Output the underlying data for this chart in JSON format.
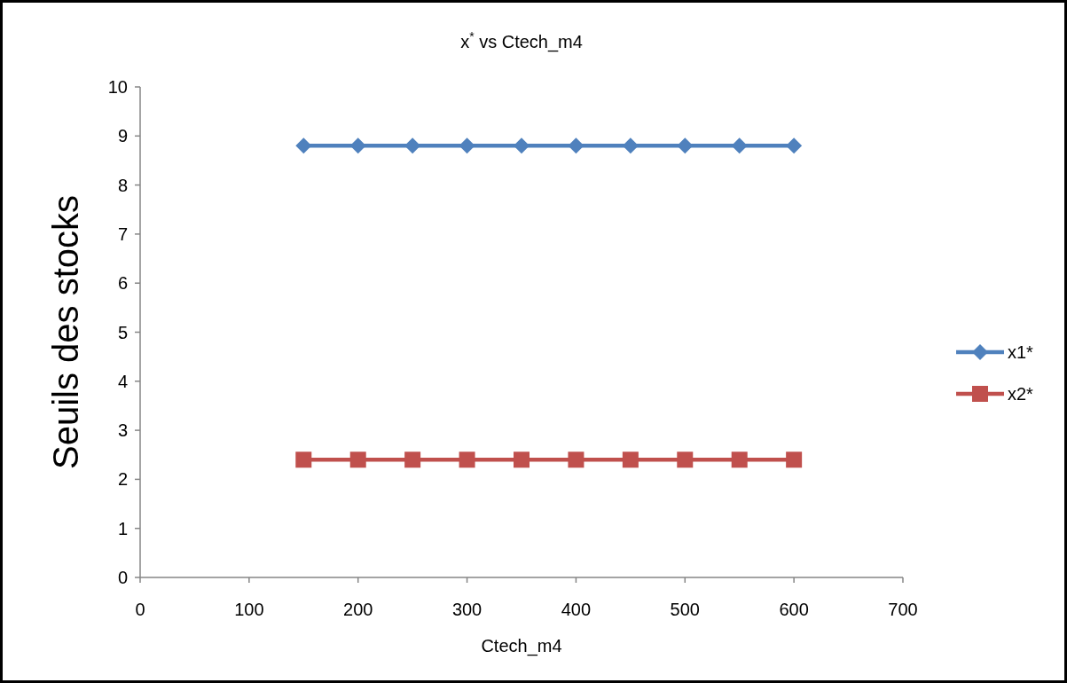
{
  "chart_data": {
    "type": "line",
    "title": "x$^{*}$ vs Ctech_m4",
    "xlabel": "Ctech_m4",
    "ylabel": "Seuils des stocks",
    "x": [
      150,
      200,
      250,
      300,
      350,
      400,
      450,
      500,
      550,
      600
    ],
    "series": [
      {
        "name": "x1*",
        "color": "#4f81bd",
        "marker": "diamond",
        "values": [
          8.8,
          8.8,
          8.8,
          8.8,
          8.8,
          8.8,
          8.8,
          8.8,
          8.8,
          8.8
        ]
      },
      {
        "name": "x2*",
        "color": "#c0504d",
        "marker": "square",
        "values": [
          2.4,
          2.4,
          2.4,
          2.4,
          2.4,
          2.4,
          2.4,
          2.4,
          2.4,
          2.4
        ]
      }
    ],
    "xlim": [
      0,
      700
    ],
    "xticks": [
      0,
      100,
      200,
      300,
      400,
      500,
      600,
      700
    ],
    "ylim": [
      0,
      10
    ],
    "yticks": [
      0,
      1,
      2,
      3,
      4,
      5,
      6,
      7,
      8,
      9,
      10
    ],
    "grid": false,
    "legend": "right",
    "line_style": "solid"
  }
}
